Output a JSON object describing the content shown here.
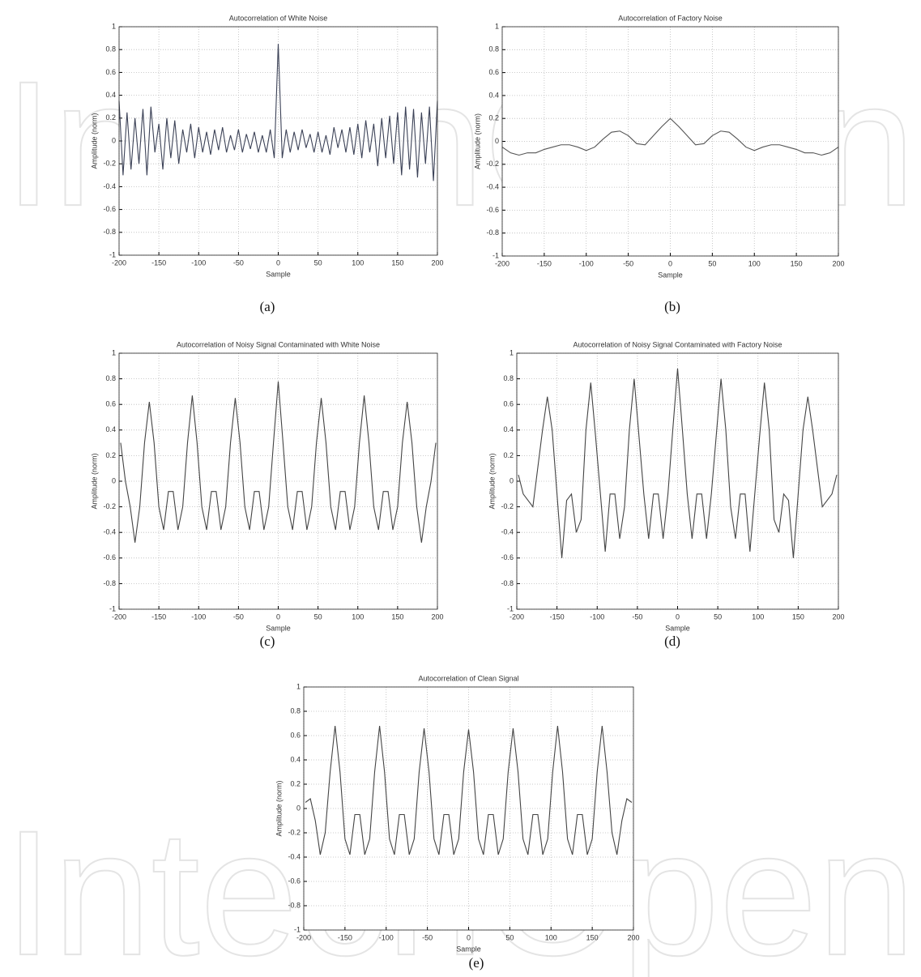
{
  "watermark": "IntechOpen",
  "chart_data": [
    {
      "type": "line",
      "title": "Autocorrelation of White Noise",
      "caption": "(a)",
      "x_label": "Sample",
      "y_label": "Amplitude (norm)",
      "grid": true,
      "color": "#3c4257",
      "xlim": [
        -200,
        200
      ],
      "ylim": [
        -1,
        1
      ],
      "xticks": [
        -200,
        -150,
        -100,
        -50,
        0,
        50,
        100,
        150,
        200
      ],
      "yticks": [
        -1,
        -0.8,
        -0.6,
        -0.4,
        -0.2,
        0,
        0.2,
        0.4,
        0.6,
        0.8,
        1
      ],
      "x": [
        -200,
        -195,
        -190,
        -185,
        -180,
        -175,
        -170,
        -165,
        -160,
        -155,
        -150,
        -145,
        -140,
        -135,
        -130,
        -125,
        -120,
        -115,
        -110,
        -105,
        -100,
        -95,
        -90,
        -85,
        -80,
        -75,
        -70,
        -65,
        -60,
        -55,
        -50,
        -45,
        -40,
        -35,
        -30,
        -25,
        -20,
        -15,
        -10,
        -5,
        0,
        5,
        10,
        15,
        20,
        25,
        30,
        35,
        40,
        45,
        50,
        55,
        60,
        65,
        70,
        75,
        80,
        85,
        90,
        95,
        100,
        105,
        110,
        115,
        120,
        125,
        130,
        135,
        140,
        145,
        150,
        155,
        160,
        165,
        170,
        175,
        180,
        185,
        190,
        195,
        200
      ],
      "values": [
        0.35,
        -0.3,
        0.25,
        -0.25,
        0.2,
        -0.2,
        0.28,
        -0.3,
        0.3,
        -0.1,
        0.15,
        -0.25,
        0.2,
        -0.15,
        0.18,
        -0.2,
        0.1,
        -0.1,
        0.15,
        -0.15,
        0.12,
        -0.1,
        0.08,
        -0.12,
        0.1,
        -0.08,
        0.12,
        -0.1,
        0.05,
        -0.08,
        0.1,
        -0.1,
        0.06,
        -0.07,
        0.08,
        -0.1,
        0.05,
        -0.1,
        0.1,
        -0.15,
        0.85,
        -0.15,
        0.1,
        -0.1,
        0.08,
        -0.08,
        0.1,
        -0.06,
        0.06,
        -0.1,
        0.08,
        -0.1,
        0.05,
        -0.12,
        0.12,
        -0.06,
        0.1,
        -0.1,
        0.12,
        -0.12,
        0.15,
        -0.15,
        0.18,
        -0.1,
        0.15,
        -0.22,
        0.2,
        -0.15,
        0.22,
        -0.2,
        0.25,
        -0.3,
        0.3,
        -0.25,
        0.28,
        -0.32,
        0.25,
        -0.2,
        0.3,
        -0.35,
        0.35
      ]
    },
    {
      "type": "line",
      "title": "Autocorrelation of Factory Noise",
      "caption": "(b)",
      "x_label": "Sample",
      "y_label": "Amplitude (norm)",
      "grid": true,
      "color": "#555555",
      "xlim": [
        -200,
        200
      ],
      "ylim": [
        -1,
        1
      ],
      "xticks": [
        -200,
        -150,
        -100,
        -50,
        0,
        50,
        100,
        150,
        200
      ],
      "yticks": [
        -1,
        -0.8,
        -0.6,
        -0.4,
        -0.2,
        0,
        0.2,
        0.4,
        0.6,
        0.8,
        1
      ],
      "x": [
        -200,
        -190,
        -180,
        -170,
        -160,
        -150,
        -140,
        -130,
        -120,
        -110,
        -100,
        -90,
        -80,
        -70,
        -60,
        -50,
        -40,
        -30,
        -20,
        -10,
        0,
        10,
        20,
        30,
        40,
        50,
        60,
        70,
        80,
        90,
        100,
        110,
        120,
        130,
        140,
        150,
        160,
        170,
        180,
        190,
        200
      ],
      "values": [
        -0.05,
        -0.1,
        -0.12,
        -0.1,
        -0.1,
        -0.07,
        -0.05,
        -0.03,
        -0.03,
        -0.05,
        -0.08,
        -0.05,
        0.02,
        0.08,
        0.09,
        0.05,
        -0.02,
        -0.03,
        0.05,
        0.13,
        0.2,
        0.13,
        0.05,
        -0.03,
        -0.02,
        0.05,
        0.09,
        0.08,
        0.02,
        -0.05,
        -0.08,
        -0.05,
        -0.03,
        -0.03,
        -0.05,
        -0.07,
        -0.1,
        -0.1,
        -0.12,
        -0.1,
        -0.05
      ]
    },
    {
      "type": "line",
      "title": "Autocorrelation of Noisy Signal Contaminated with White Noise",
      "caption": "(c)",
      "x_label": "Sample",
      "y_label": "Amplitude (norm)",
      "grid": true,
      "color": "#444444",
      "xlim": [
        -200,
        200
      ],
      "ylim": [
        -1,
        1
      ],
      "xticks": [
        -200,
        -150,
        -100,
        -50,
        0,
        50,
        100,
        150,
        200
      ],
      "yticks": [
        -1,
        -0.8,
        -0.6,
        -0.4,
        -0.2,
        0,
        0.2,
        0.4,
        0.6,
        0.8,
        1
      ],
      "x": [
        -198,
        -192,
        -186,
        -180,
        -174,
        -168,
        -162,
        -156,
        -150,
        -144,
        -138,
        -132,
        -126,
        -120,
        -114,
        -108,
        -102,
        -96,
        -90,
        -84,
        -78,
        -72,
        -66,
        -60,
        -54,
        -48,
        -42,
        -36,
        -30,
        -24,
        -18,
        -12,
        -6,
        0,
        6,
        12,
        18,
        24,
        30,
        36,
        42,
        48,
        54,
        60,
        66,
        72,
        78,
        84,
        90,
        96,
        102,
        108,
        114,
        120,
        126,
        132,
        138,
        144,
        150,
        156,
        162,
        168,
        174,
        180,
        186,
        192,
        198
      ],
      "values": [
        0.3,
        0,
        -0.2,
        -0.48,
        -0.2,
        0.3,
        0.62,
        0.3,
        -0.2,
        -0.38,
        -0.08,
        -0.08,
        -0.38,
        -0.2,
        0.3,
        0.67,
        0.3,
        -0.2,
        -0.38,
        -0.08,
        -0.08,
        -0.38,
        -0.2,
        0.3,
        0.65,
        0.3,
        -0.2,
        -0.38,
        -0.08,
        -0.08,
        -0.38,
        -0.2,
        0.3,
        0.78,
        0.3,
        -0.2,
        -0.38,
        -0.08,
        -0.08,
        -0.38,
        -0.2,
        0.3,
        0.65,
        0.3,
        -0.2,
        -0.38,
        -0.08,
        -0.08,
        -0.38,
        -0.2,
        0.3,
        0.67,
        0.3,
        -0.2,
        -0.38,
        -0.08,
        -0.08,
        -0.38,
        -0.2,
        0.3,
        0.62,
        0.3,
        -0.2,
        -0.48,
        -0.2,
        0,
        0.3
      ]
    },
    {
      "type": "line",
      "title": "Autocorrelation of Noisy Signal Contaminated with Factory Noise",
      "caption": "(d)",
      "x_label": "Sample",
      "y_label": "Amplitude (norm)",
      "grid": true,
      "color": "#444444",
      "xlim": [
        -200,
        200
      ],
      "ylim": [
        -1,
        1
      ],
      "xticks": [
        -200,
        -150,
        -100,
        -50,
        0,
        50,
        100,
        150,
        200
      ],
      "yticks": [
        -1,
        -0.8,
        -0.6,
        -0.4,
        -0.2,
        0,
        0.2,
        0.4,
        0.6,
        0.8,
        1
      ],
      "x": [
        -198,
        -192,
        -186,
        -180,
        -174,
        -168,
        -162,
        -156,
        -150,
        -144,
        -138,
        -132,
        -126,
        -120,
        -114,
        -108,
        -102,
        -96,
        -90,
        -84,
        -78,
        -72,
        -66,
        -60,
        -54,
        -48,
        -42,
        -36,
        -30,
        -24,
        -18,
        -12,
        -6,
        0,
        6,
        12,
        18,
        24,
        30,
        36,
        42,
        48,
        54,
        60,
        66,
        72,
        78,
        84,
        90,
        96,
        102,
        108,
        114,
        120,
        126,
        132,
        138,
        144,
        150,
        156,
        162,
        168,
        174,
        180,
        186,
        192,
        198
      ],
      "values": [
        0.05,
        -0.1,
        -0.15,
        -0.2,
        0.1,
        0.4,
        0.66,
        0.4,
        -0.1,
        -0.6,
        -0.15,
        -0.1,
        -0.4,
        -0.3,
        0.4,
        0.77,
        0.35,
        -0.1,
        -0.55,
        -0.1,
        -0.1,
        -0.45,
        -0.2,
        0.4,
        0.8,
        0.35,
        -0.1,
        -0.45,
        -0.1,
        -0.1,
        -0.45,
        -0.1,
        0.4,
        0.88,
        0.4,
        -0.1,
        -0.45,
        -0.1,
        -0.1,
        -0.45,
        -0.1,
        0.35,
        0.8,
        0.4,
        -0.2,
        -0.45,
        -0.1,
        -0.1,
        -0.55,
        -0.1,
        0.35,
        0.77,
        0.4,
        -0.3,
        -0.4,
        -0.1,
        -0.15,
        -0.6,
        -0.1,
        0.4,
        0.66,
        0.4,
        0.1,
        -0.2,
        -0.15,
        -0.1,
        0.05
      ]
    },
    {
      "type": "line",
      "title": "Autocorrelation of Clean Signal",
      "caption": "(e)",
      "x_label": "Sample",
      "y_label": "Amplitude (norm)",
      "grid": true,
      "color": "#444444",
      "xlim": [
        -200,
        200
      ],
      "ylim": [
        -1,
        1
      ],
      "xticks": [
        -200,
        -150,
        -100,
        -50,
        0,
        50,
        100,
        150,
        200
      ],
      "yticks": [
        -1,
        -0.8,
        -0.6,
        -0.4,
        -0.2,
        0,
        0.2,
        0.4,
        0.6,
        0.8,
        1
      ],
      "x": [
        -198,
        -192,
        -186,
        -180,
        -174,
        -168,
        -162,
        -156,
        -150,
        -144,
        -138,
        -132,
        -126,
        -120,
        -114,
        -108,
        -102,
        -96,
        -90,
        -84,
        -78,
        -72,
        -66,
        -60,
        -54,
        -48,
        -42,
        -36,
        -30,
        -24,
        -18,
        -12,
        -6,
        0,
        6,
        12,
        18,
        24,
        30,
        36,
        42,
        48,
        54,
        60,
        66,
        72,
        78,
        84,
        90,
        96,
        102,
        108,
        114,
        120,
        126,
        132,
        138,
        144,
        150,
        156,
        162,
        168,
        174,
        180,
        186,
        192,
        198
      ],
      "values": [
        0.05,
        0.08,
        -0.1,
        -0.38,
        -0.2,
        0.3,
        0.68,
        0.3,
        -0.25,
        -0.38,
        -0.05,
        -0.05,
        -0.38,
        -0.25,
        0.3,
        0.68,
        0.3,
        -0.25,
        -0.38,
        -0.05,
        -0.05,
        -0.38,
        -0.25,
        0.3,
        0.66,
        0.3,
        -0.25,
        -0.38,
        -0.05,
        -0.05,
        -0.38,
        -0.25,
        0.3,
        0.65,
        0.3,
        -0.25,
        -0.38,
        -0.05,
        -0.05,
        -0.38,
        -0.25,
        0.3,
        0.66,
        0.3,
        -0.25,
        -0.38,
        -0.05,
        -0.05,
        -0.38,
        -0.25,
        0.3,
        0.68,
        0.3,
        -0.25,
        -0.38,
        -0.05,
        -0.05,
        -0.38,
        -0.25,
        0.3,
        0.68,
        0.3,
        -0.2,
        -0.38,
        -0.1,
        0.08,
        0.05
      ]
    }
  ]
}
